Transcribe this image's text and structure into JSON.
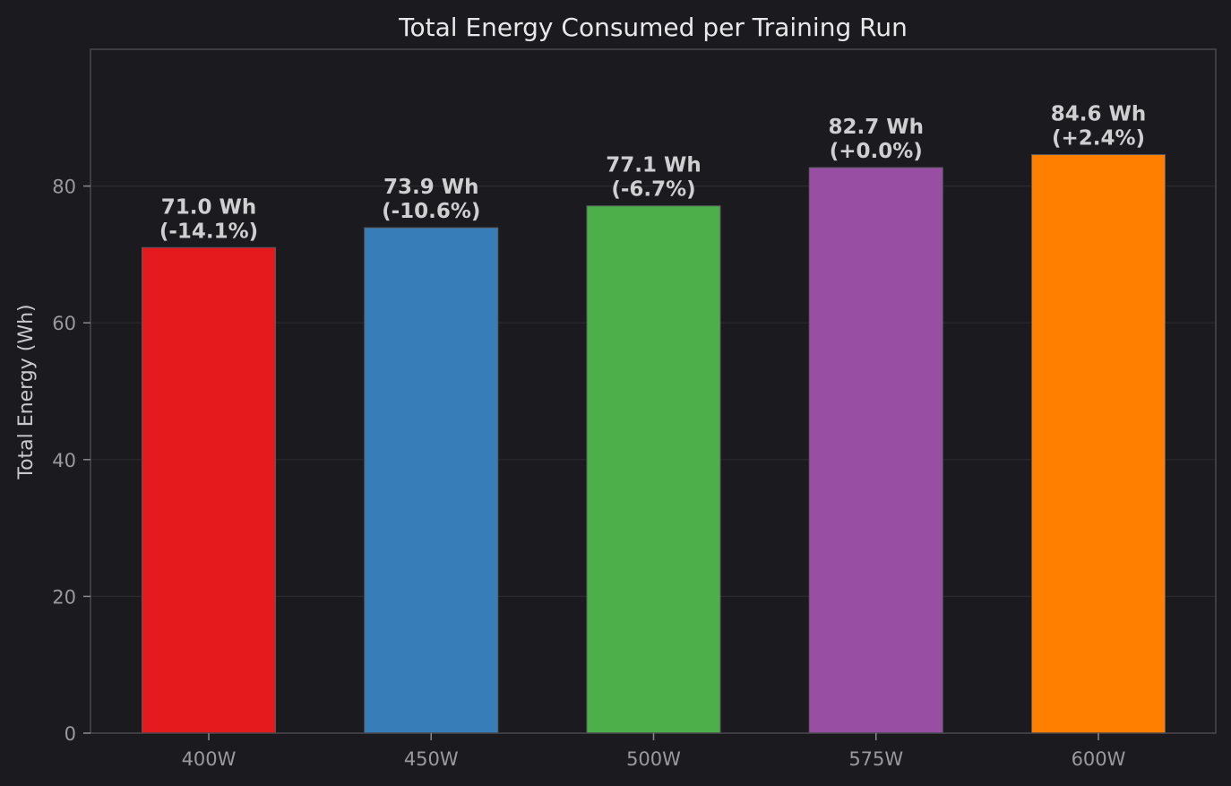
{
  "chart_data": {
    "type": "bar",
    "title": "Total Energy Consumed per Training Run",
    "xlabel": "",
    "ylabel": "Total Energy (Wh)",
    "categories": [
      "400W",
      "450W",
      "500W",
      "575W",
      "600W"
    ],
    "values": [
      71.0,
      73.9,
      77.1,
      82.7,
      84.6
    ],
    "data_labels": [
      [
        "71.0 Wh",
        "(-14.1%)"
      ],
      [
        "73.9 Wh",
        "(-10.6%)"
      ],
      [
        "77.1 Wh",
        "(-6.7%)"
      ],
      [
        "82.7 Wh",
        "(+0.0%)"
      ],
      [
        "84.6 Wh",
        "(+2.4%)"
      ]
    ],
    "colors": [
      "#e41a1c",
      "#377eb8",
      "#4daf4a",
      "#984ea3",
      "#ff7f00"
    ],
    "ylim": [
      0,
      100
    ],
    "yticks": [
      0,
      20,
      40,
      60,
      80
    ],
    "grid": true,
    "legend": "none"
  }
}
